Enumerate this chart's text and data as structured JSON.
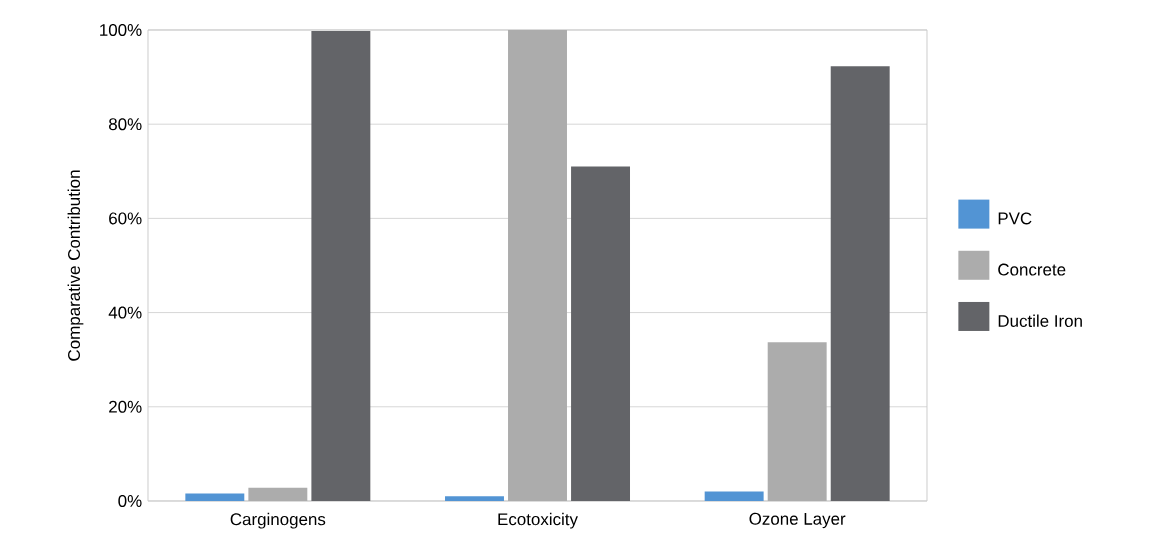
{
  "chart_data": {
    "type": "bar",
    "ylabel": "Comparative Contribution",
    "categories": [
      "Carginogens",
      "Ecotoxicity",
      "Ozone Layer"
    ],
    "series": [
      {
        "name": "PVC",
        "color": "#5294d4",
        "values": [
          1.6,
          1.0,
          2.0
        ]
      },
      {
        "name": "Concrete",
        "color": "#acacac",
        "values": [
          2.8,
          100,
          33.7
        ]
      },
      {
        "name": "Ductile Iron",
        "color": "#636468",
        "values": [
          99.8,
          71.0,
          92.3
        ]
      }
    ],
    "ylim": [
      0,
      100
    ],
    "yticks": [
      {
        "value": 0,
        "label": "0%"
      },
      {
        "value": 20,
        "label": "20%"
      },
      {
        "value": 40,
        "label": "40%"
      },
      {
        "value": 60,
        "label": "60%"
      },
      {
        "value": 80,
        "label": "80%"
      },
      {
        "value": 100,
        "label": "100%"
      }
    ],
    "grid": "y",
    "legend": "right"
  }
}
